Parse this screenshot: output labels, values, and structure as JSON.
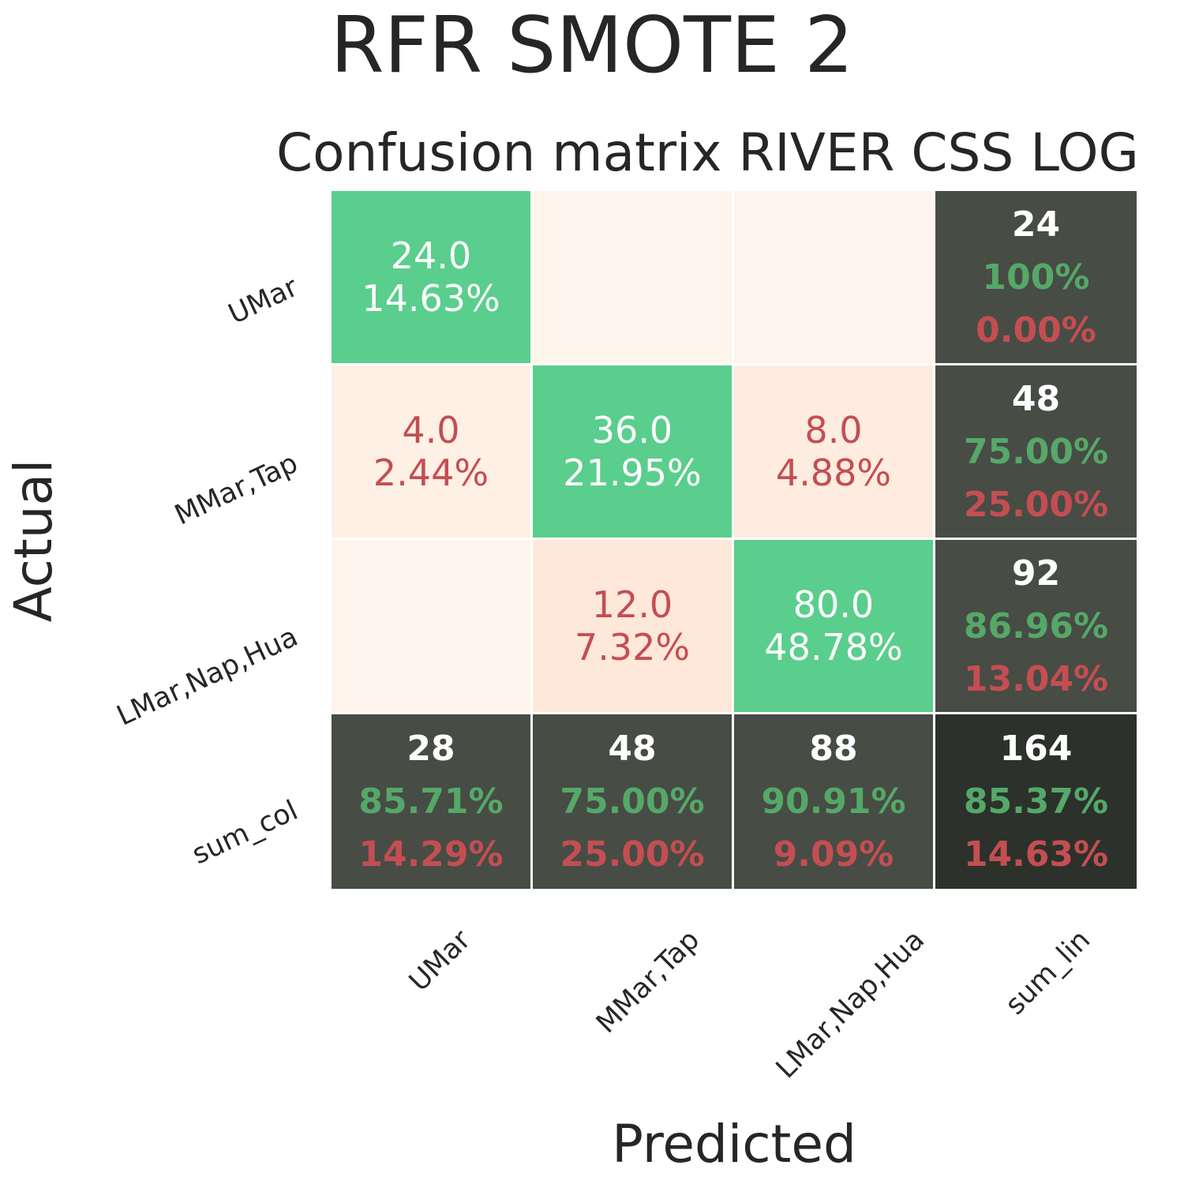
{
  "figure": {
    "suptitle": "RFR SMOTE 2",
    "title": "Confusion matrix RIVER CSS LOG",
    "xlabel": "Predicted",
    "ylabel": "Actual"
  },
  "chart_data": {
    "type": "heatmap",
    "title": "Confusion matrix RIVER CSS LOG",
    "xlabel": "Predicted",
    "ylabel": "Actual",
    "row_labels": [
      "UMar",
      "MMar,Tap",
      "LMar,Nap,Hua",
      "sum_col"
    ],
    "col_labels": [
      "UMar",
      "MMar,Tap",
      "LMar,Nap,Hua",
      "sum_lin"
    ],
    "classes": [
      "UMar",
      "MMar,Tap",
      "LMar,Nap,Hua"
    ],
    "matrix": [
      [
        24,
        0,
        0
      ],
      [
        4,
        36,
        8
      ],
      [
        0,
        12,
        80
      ]
    ],
    "cell_text": [
      [
        [
          "24.0",
          "14.63%"
        ],
        [],
        []
      ],
      [
        [
          "4.0",
          "2.44%"
        ],
        [
          "36.0",
          "21.95%"
        ],
        [
          "8.0",
          "4.88%"
        ]
      ],
      [
        [],
        [
          "12.0",
          "7.32%"
        ],
        [
          "80.0",
          "48.78%"
        ]
      ]
    ],
    "row_sums": [
      {
        "total": "24",
        "correct": "100%",
        "error": "0.00%"
      },
      {
        "total": "48",
        "correct": "75.00%",
        "error": "25.00%"
      },
      {
        "total": "92",
        "correct": "86.96%",
        "error": "13.04%"
      }
    ],
    "col_sums": [
      {
        "total": "28",
        "correct": "85.71%",
        "error": "14.29%"
      },
      {
        "total": "48",
        "correct": "75.00%",
        "error": "25.00%"
      },
      {
        "total": "88",
        "correct": "90.91%",
        "error": "9.09%"
      }
    ],
    "grand_total": {
      "total": "164",
      "correct": "85.37%",
      "error": "14.63%"
    },
    "colors": {
      "diagonal": "#5ace8c",
      "off_diagonal_low": "#fef4eb",
      "off_diagonal_high": "#fde8d9",
      "sum_cell": "#474c45",
      "grand_total_cell": "#2c312b",
      "diag_text": "#ffffff",
      "off_text": "#c44e52",
      "sum_total_text": "#ffffff",
      "correct_text": "#55a868",
      "error_text": "#c44e52"
    }
  }
}
